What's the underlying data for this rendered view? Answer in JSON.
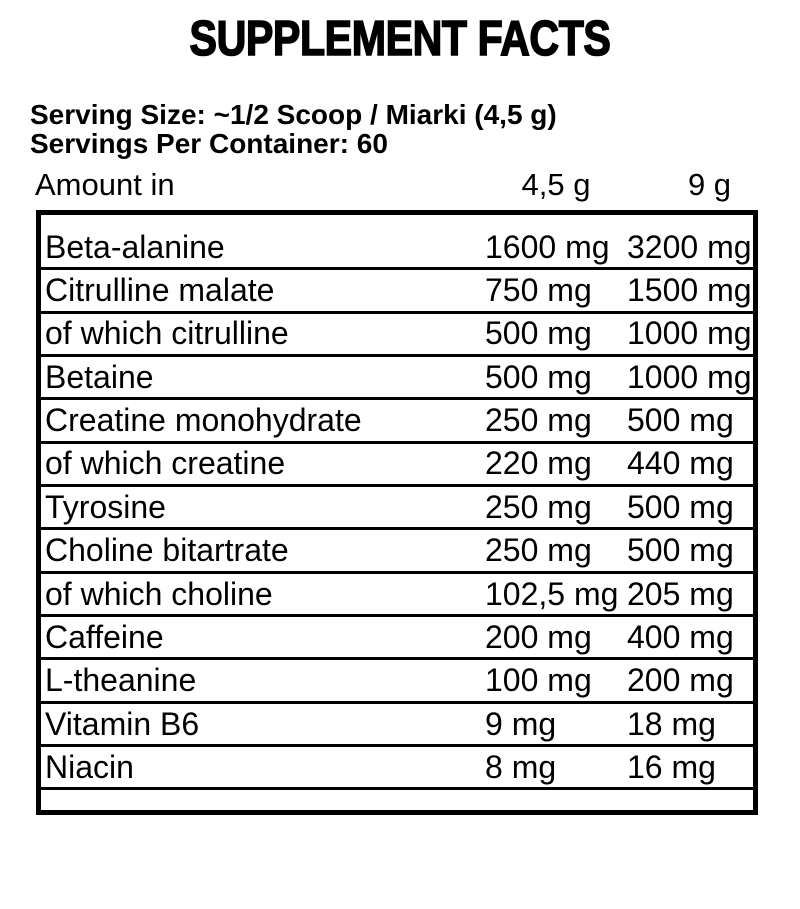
{
  "title": "SUPPLEMENT FACTS",
  "serving": {
    "size_line": "Serving Size: ~1/2 Scoop / Miarki (4,5 g)",
    "per_container_line": "Servings Per Container: 60"
  },
  "table": {
    "header": {
      "amount_label": "Amount in",
      "col1_label": "4,5 g",
      "col2_label": "9 g"
    },
    "rows": [
      {
        "name": "Beta-alanine",
        "per_4_5g": "1600 mg",
        "per_9g": "3200 mg"
      },
      {
        "name": "Citrulline malate",
        "per_4_5g": "750 mg",
        "per_9g": "1500 mg"
      },
      {
        "name": "of which citrulline",
        "per_4_5g": "500 mg",
        "per_9g": "1000 mg"
      },
      {
        "name": "Betaine",
        "per_4_5g": "500 mg",
        "per_9g": "1000 mg"
      },
      {
        "name": "Creatine monohydrate",
        "per_4_5g": "250 mg",
        "per_9g": "500 mg"
      },
      {
        "name": "of which creatine",
        "per_4_5g": "220 mg",
        "per_9g": "440 mg"
      },
      {
        "name": "Tyrosine",
        "per_4_5g": "250 mg",
        "per_9g": "500 mg"
      },
      {
        "name": "Choline bitartrate",
        "per_4_5g": "250 mg",
        "per_9g": "500 mg"
      },
      {
        "name": "of which choline",
        "per_4_5g": "102,5 mg",
        "per_9g": "205 mg"
      },
      {
        "name": "Caffeine",
        "per_4_5g": "200 mg",
        "per_9g": "400 mg"
      },
      {
        "name": "L-theanine",
        "per_4_5g": "100 mg",
        "per_9g": "200 mg"
      },
      {
        "name": "Vitamin B6",
        "per_4_5g": "9 mg",
        "per_9g": "18 mg"
      },
      {
        "name": "Niacin",
        "per_4_5g": "8 mg",
        "per_9g": "16 mg"
      }
    ]
  },
  "colors": {
    "text": "#000000",
    "background": "#ffffff",
    "border": "#000000"
  }
}
